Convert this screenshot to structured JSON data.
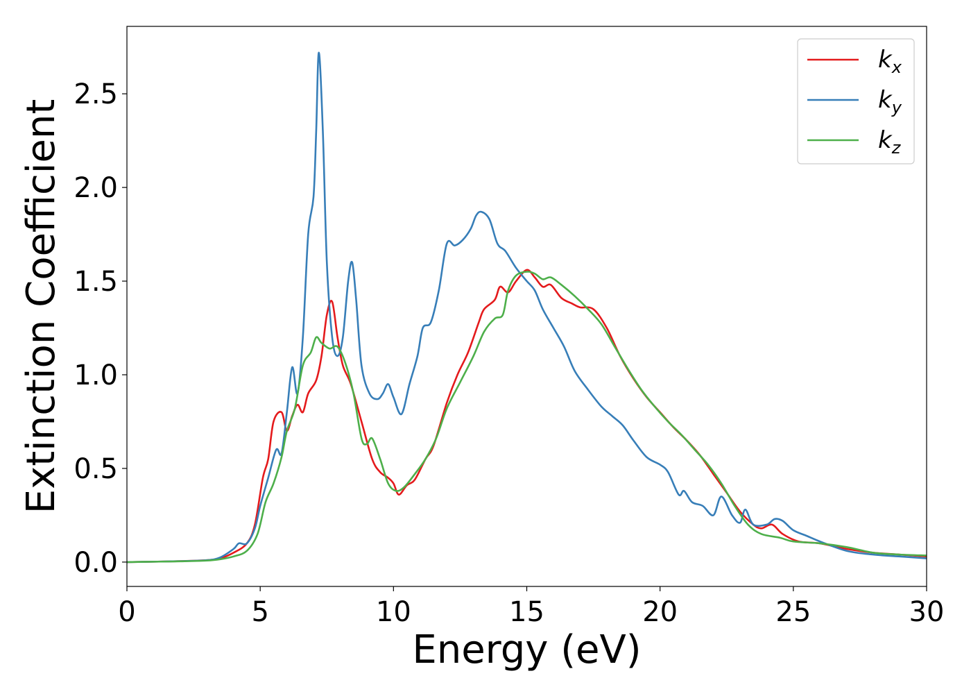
{
  "chart_data": {
    "type": "line",
    "xlabel": "Energy (eV)",
    "ylabel": "Extinction Coefficient",
    "xlim": [
      0,
      30
    ],
    "ylim": [
      -0.13,
      2.86
    ],
    "xticks": [
      0,
      5,
      10,
      15,
      20,
      25,
      30
    ],
    "xtick_labels": [
      "0",
      "5",
      "10",
      "15",
      "20",
      "25",
      "30"
    ],
    "yticks": [
      0.0,
      0.5,
      1.0,
      1.5,
      2.0,
      2.5
    ],
    "ytick_labels": [
      "0.0",
      "0.5",
      "1.0",
      "1.5",
      "2.0",
      "2.5"
    ],
    "grid": false,
    "legend_position": "top-right",
    "series": [
      {
        "name": "k_x",
        "label_base": "k",
        "label_sub": "x",
        "color": "#e41a1c",
        "points": [
          [
            0,
            0
          ],
          [
            1,
            0.002
          ],
          [
            2,
            0.005
          ],
          [
            3,
            0.01
          ],
          [
            3.5,
            0.02
          ],
          [
            4,
            0.05
          ],
          [
            4.5,
            0.1
          ],
          [
            4.8,
            0.2
          ],
          [
            5.1,
            0.45
          ],
          [
            5.3,
            0.55
          ],
          [
            5.5,
            0.75
          ],
          [
            5.8,
            0.8
          ],
          [
            6.0,
            0.7
          ],
          [
            6.2,
            0.78
          ],
          [
            6.4,
            0.84
          ],
          [
            6.6,
            0.8
          ],
          [
            6.8,
            0.9
          ],
          [
            7.1,
            0.97
          ],
          [
            7.3,
            1.1
          ],
          [
            7.5,
            1.32
          ],
          [
            7.7,
            1.39
          ],
          [
            7.9,
            1.2
          ],
          [
            8.1,
            1.05
          ],
          [
            8.4,
            0.95
          ],
          [
            8.8,
            0.75
          ],
          [
            9.2,
            0.55
          ],
          [
            9.5,
            0.48
          ],
          [
            9.8,
            0.45
          ],
          [
            10.0,
            0.42
          ],
          [
            10.2,
            0.36
          ],
          [
            10.5,
            0.41
          ],
          [
            10.8,
            0.44
          ],
          [
            11.2,
            0.55
          ],
          [
            11.5,
            0.62
          ],
          [
            12.0,
            0.85
          ],
          [
            12.4,
            1.0
          ],
          [
            12.8,
            1.12
          ],
          [
            13.2,
            1.28
          ],
          [
            13.4,
            1.35
          ],
          [
            13.8,
            1.4
          ],
          [
            14.0,
            1.47
          ],
          [
            14.3,
            1.44
          ],
          [
            14.6,
            1.5
          ],
          [
            15.0,
            1.56
          ],
          [
            15.3,
            1.52
          ],
          [
            15.6,
            1.47
          ],
          [
            15.9,
            1.48
          ],
          [
            16.3,
            1.41
          ],
          [
            16.7,
            1.38
          ],
          [
            17.0,
            1.36
          ],
          [
            17.5,
            1.35
          ],
          [
            18.0,
            1.25
          ],
          [
            18.5,
            1.1
          ],
          [
            19.0,
            0.98
          ],
          [
            19.5,
            0.88
          ],
          [
            20.0,
            0.8
          ],
          [
            20.5,
            0.72
          ],
          [
            21.0,
            0.65
          ],
          [
            21.5,
            0.57
          ],
          [
            22.0,
            0.47
          ],
          [
            22.5,
            0.37
          ],
          [
            23.0,
            0.27
          ],
          [
            23.5,
            0.2
          ],
          [
            23.8,
            0.18
          ],
          [
            24.2,
            0.2
          ],
          [
            24.6,
            0.15
          ],
          [
            25.2,
            0.11
          ],
          [
            26.0,
            0.1
          ],
          [
            27.0,
            0.07
          ],
          [
            28.0,
            0.05
          ],
          [
            29.0,
            0.04
          ],
          [
            30.0,
            0.03
          ]
        ]
      },
      {
        "name": "k_y",
        "label_base": "k",
        "label_sub": "y",
        "color": "#377eb8",
        "points": [
          [
            0,
            0
          ],
          [
            1,
            0.002
          ],
          [
            2,
            0.005
          ],
          [
            3,
            0.01
          ],
          [
            3.5,
            0.025
          ],
          [
            4.0,
            0.07
          ],
          [
            4.2,
            0.1
          ],
          [
            4.5,
            0.1
          ],
          [
            4.8,
            0.18
          ],
          [
            5.0,
            0.3
          ],
          [
            5.3,
            0.45
          ],
          [
            5.6,
            0.6
          ],
          [
            5.8,
            0.58
          ],
          [
            6.0,
            0.8
          ],
          [
            6.2,
            1.04
          ],
          [
            6.4,
            0.9
          ],
          [
            6.6,
            1.2
          ],
          [
            6.8,
            1.75
          ],
          [
            7.0,
            1.95
          ],
          [
            7.1,
            2.3
          ],
          [
            7.2,
            2.72
          ],
          [
            7.35,
            2.3
          ],
          [
            7.5,
            1.6
          ],
          [
            7.7,
            1.2
          ],
          [
            7.9,
            1.1
          ],
          [
            8.1,
            1.2
          ],
          [
            8.3,
            1.5
          ],
          [
            8.45,
            1.6
          ],
          [
            8.6,
            1.4
          ],
          [
            8.8,
            1.05
          ],
          [
            9.1,
            0.9
          ],
          [
            9.4,
            0.87
          ],
          [
            9.6,
            0.9
          ],
          [
            9.8,
            0.95
          ],
          [
            10.0,
            0.88
          ],
          [
            10.3,
            0.79
          ],
          [
            10.6,
            0.95
          ],
          [
            10.9,
            1.1
          ],
          [
            11.1,
            1.25
          ],
          [
            11.4,
            1.28
          ],
          [
            11.7,
            1.45
          ],
          [
            12.0,
            1.7
          ],
          [
            12.3,
            1.69
          ],
          [
            12.6,
            1.72
          ],
          [
            12.9,
            1.78
          ],
          [
            13.1,
            1.85
          ],
          [
            13.3,
            1.87
          ],
          [
            13.6,
            1.83
          ],
          [
            13.9,
            1.7
          ],
          [
            14.2,
            1.66
          ],
          [
            14.6,
            1.57
          ],
          [
            15.0,
            1.5
          ],
          [
            15.3,
            1.45
          ],
          [
            15.6,
            1.35
          ],
          [
            16.0,
            1.25
          ],
          [
            16.4,
            1.15
          ],
          [
            16.8,
            1.02
          ],
          [
            17.3,
            0.92
          ],
          [
            17.8,
            0.83
          ],
          [
            18.2,
            0.78
          ],
          [
            18.6,
            0.73
          ],
          [
            19.0,
            0.65
          ],
          [
            19.5,
            0.56
          ],
          [
            20.0,
            0.52
          ],
          [
            20.3,
            0.48
          ],
          [
            20.7,
            0.36
          ],
          [
            20.9,
            0.38
          ],
          [
            21.2,
            0.32
          ],
          [
            21.6,
            0.3
          ],
          [
            22.0,
            0.25
          ],
          [
            22.3,
            0.35
          ],
          [
            22.7,
            0.25
          ],
          [
            23.0,
            0.21
          ],
          [
            23.2,
            0.28
          ],
          [
            23.5,
            0.2
          ],
          [
            24.0,
            0.2
          ],
          [
            24.3,
            0.23
          ],
          [
            24.6,
            0.22
          ],
          [
            25.0,
            0.17
          ],
          [
            25.5,
            0.14
          ],
          [
            26.0,
            0.11
          ],
          [
            27.0,
            0.06
          ],
          [
            28.0,
            0.04
          ],
          [
            29.0,
            0.03
          ],
          [
            30.0,
            0.02
          ]
        ]
      },
      {
        "name": "k_z",
        "label_base": "k",
        "label_sub": "z",
        "color": "#4daf4a",
        "points": [
          [
            0,
            0
          ],
          [
            1,
            0.002
          ],
          [
            2,
            0.004
          ],
          [
            3,
            0.008
          ],
          [
            3.5,
            0.015
          ],
          [
            4.0,
            0.03
          ],
          [
            4.5,
            0.06
          ],
          [
            4.9,
            0.15
          ],
          [
            5.2,
            0.32
          ],
          [
            5.5,
            0.42
          ],
          [
            5.8,
            0.56
          ],
          [
            6.0,
            0.7
          ],
          [
            6.3,
            0.82
          ],
          [
            6.6,
            1.05
          ],
          [
            6.9,
            1.12
          ],
          [
            7.1,
            1.2
          ],
          [
            7.3,
            1.17
          ],
          [
            7.6,
            1.14
          ],
          [
            7.9,
            1.15
          ],
          [
            8.2,
            1.06
          ],
          [
            8.5,
            0.9
          ],
          [
            8.8,
            0.66
          ],
          [
            9.0,
            0.63
          ],
          [
            9.2,
            0.66
          ],
          [
            9.5,
            0.55
          ],
          [
            9.8,
            0.42
          ],
          [
            10.1,
            0.38
          ],
          [
            10.4,
            0.4
          ],
          [
            10.8,
            0.47
          ],
          [
            11.2,
            0.55
          ],
          [
            11.6,
            0.66
          ],
          [
            12.0,
            0.82
          ],
          [
            12.5,
            0.96
          ],
          [
            13.0,
            1.1
          ],
          [
            13.4,
            1.23
          ],
          [
            13.8,
            1.3
          ],
          [
            14.1,
            1.32
          ],
          [
            14.3,
            1.45
          ],
          [
            14.6,
            1.53
          ],
          [
            15.0,
            1.55
          ],
          [
            15.3,
            1.54
          ],
          [
            15.6,
            1.51
          ],
          [
            15.9,
            1.52
          ],
          [
            16.3,
            1.48
          ],
          [
            16.8,
            1.42
          ],
          [
            17.3,
            1.35
          ],
          [
            17.8,
            1.27
          ],
          [
            18.3,
            1.15
          ],
          [
            18.8,
            1.03
          ],
          [
            19.3,
            0.92
          ],
          [
            19.8,
            0.83
          ],
          [
            20.3,
            0.75
          ],
          [
            20.8,
            0.68
          ],
          [
            21.3,
            0.6
          ],
          [
            21.8,
            0.52
          ],
          [
            22.3,
            0.42
          ],
          [
            22.8,
            0.3
          ],
          [
            23.3,
            0.2
          ],
          [
            23.8,
            0.15
          ],
          [
            24.5,
            0.13
          ],
          [
            25.0,
            0.11
          ],
          [
            26.0,
            0.1
          ],
          [
            27.0,
            0.08
          ],
          [
            28.0,
            0.05
          ],
          [
            29.0,
            0.04
          ],
          [
            30.0,
            0.035
          ]
        ]
      }
    ]
  }
}
